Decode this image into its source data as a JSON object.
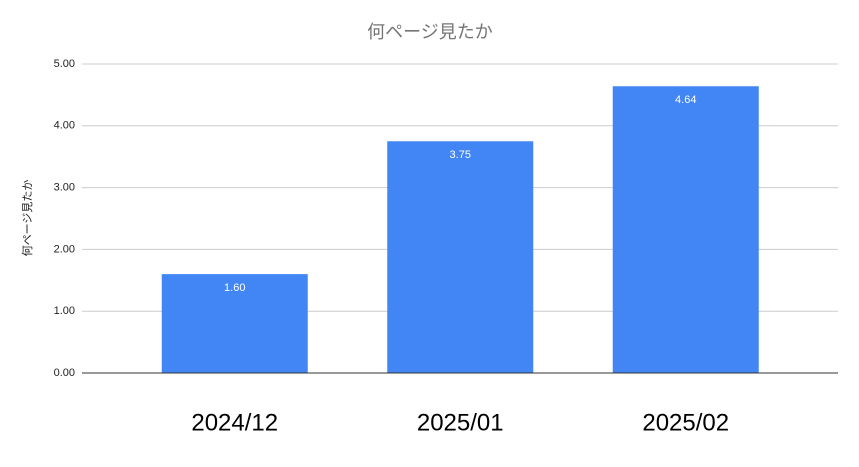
{
  "chart_data": {
    "type": "bar",
    "title": "何ページ見たか",
    "y_label": "何ページ見たか",
    "categories": [
      "2024/12",
      "2025/01",
      "2025/02"
    ],
    "values": [
      1.6,
      3.75,
      4.64
    ],
    "value_labels": [
      "1.60",
      "3.75",
      "4.64"
    ],
    "color": "#4285f4",
    "ylim": [
      0,
      5
    ],
    "yticks": [
      {
        "value": 0,
        "label": "0.00"
      },
      {
        "value": 1,
        "label": "1.00"
      },
      {
        "value": 2,
        "label": "2.00"
      },
      {
        "value": 3,
        "label": "3.00"
      },
      {
        "value": 4,
        "label": "4.00"
      },
      {
        "value": 5,
        "label": "5.00"
      }
    ],
    "grid": true
  }
}
